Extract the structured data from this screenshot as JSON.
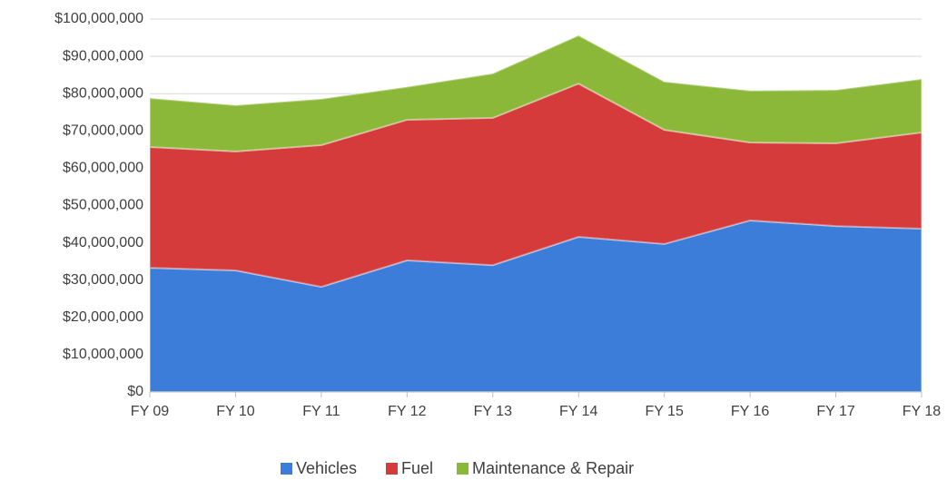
{
  "chart_data": {
    "type": "stacked_area",
    "categories": [
      "FY 09",
      "FY 10",
      "FY 11",
      "FY 12",
      "FY 13",
      "FY 14",
      "FY 15",
      "FY 16",
      "FY 17",
      "FY 18"
    ],
    "series": [
      {
        "name": "Vehicles",
        "color": "#3b7dd8",
        "values": [
          33300000,
          32600000,
          28200000,
          35300000,
          34000000,
          41600000,
          39700000,
          46000000,
          44500000,
          43800000
        ]
      },
      {
        "name": "Fuel",
        "color": "#d63b3b",
        "values": [
          32400000,
          31900000,
          38000000,
          37700000,
          39500000,
          41100000,
          30600000,
          20900000,
          22200000,
          25800000
        ]
      },
      {
        "name": "Maintenance & Repair",
        "color": "#8cb83a",
        "values": [
          13100000,
          12400000,
          12400000,
          8800000,
          11900000,
          12900000,
          12900000,
          13900000,
          14300000,
          14300000
        ]
      }
    ],
    "ylim": [
      0,
      100000000
    ],
    "yticks": [
      {
        "value": 0,
        "label": "$0"
      },
      {
        "value": 10000000,
        "label": "$10,000,000"
      },
      {
        "value": 20000000,
        "label": "$20,000,000"
      },
      {
        "value": 30000000,
        "label": "$30,000,000"
      },
      {
        "value": 40000000,
        "label": "$40,000,000"
      },
      {
        "value": 50000000,
        "label": "$50,000,000"
      },
      {
        "value": 60000000,
        "label": "$60,000,000"
      },
      {
        "value": 70000000,
        "label": "$70,000,000"
      },
      {
        "value": 80000000,
        "label": "$80,000,000"
      },
      {
        "value": 90000000,
        "label": "$90,000,000"
      },
      {
        "value": 100000000,
        "label": "$100,000,000"
      }
    ],
    "grid": true,
    "legend": "bottom"
  }
}
